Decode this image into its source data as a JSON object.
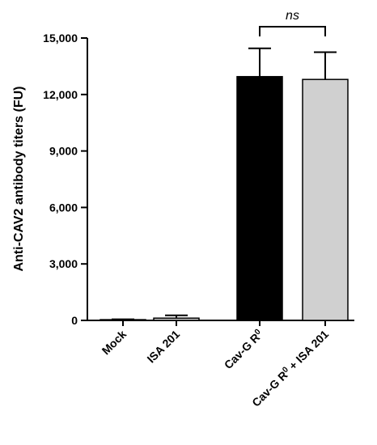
{
  "chart_data": {
    "type": "bar",
    "ylabel": "Anti-CAV2 antibody titers (FU)",
    "xlabel": "",
    "ylim": [
      0,
      15000
    ],
    "yticks": [
      0,
      3000,
      6000,
      9000,
      12000,
      15000
    ],
    "ytick_labels": [
      "0",
      "3,000",
      "6,000",
      "9,000",
      "12,000",
      "15,000"
    ],
    "categories": [
      {
        "base": "Mock",
        "sup": "",
        "tail": ""
      },
      {
        "base": "ISA 201",
        "sup": "",
        "tail": ""
      },
      {
        "base": "Cav-G R",
        "sup": "0",
        "tail": ""
      },
      {
        "base": "Cav-G R",
        "sup": "0",
        "tail": " + ISA 201"
      }
    ],
    "values": [
      40,
      120,
      12950,
      12800
    ],
    "errors": [
      20,
      150,
      1500,
      1450
    ],
    "bar_colors": [
      "#000000",
      "#d0d0d0",
      "#000000",
      "#d0d0d0"
    ],
    "significance": [
      {
        "from": 2,
        "to": 3,
        "label": "ns"
      }
    ],
    "grid": false,
    "legend": "none"
  }
}
